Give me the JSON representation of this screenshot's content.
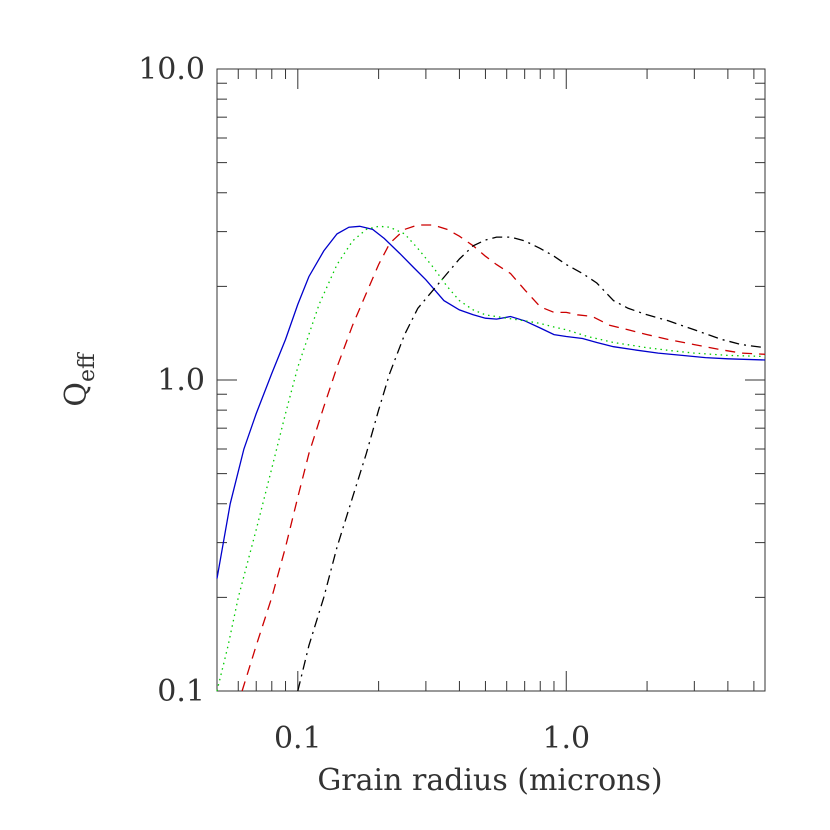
{
  "chart_data": {
    "type": "line",
    "title": "",
    "xlabel": "Grain radius (microns)",
    "ylabel_main": "Q",
    "ylabel_sub": "eff",
    "xscale": "log",
    "yscale": "log",
    "xlim": [
      0.05,
      5.5
    ],
    "ylim": [
      0.1,
      10.0
    ],
    "x_tick_labels": [
      {
        "value": 0.1,
        "label": "0.1"
      },
      {
        "value": 1.0,
        "label": "1.0"
      }
    ],
    "y_tick_labels": [
      {
        "value": 0.1,
        "label": "0.1"
      },
      {
        "value": 1.0,
        "label": "1.0"
      },
      {
        "value": 10.0,
        "label": "10.0"
      }
    ],
    "grid": false,
    "series": [
      {
        "color": "#0000cc",
        "linestyle": "solid",
        "x": [
          0.05,
          0.056,
          0.063,
          0.07,
          0.08,
          0.09,
          0.1,
          0.11,
          0.125,
          0.14,
          0.155,
          0.17,
          0.19,
          0.21,
          0.24,
          0.27,
          0.3,
          0.35,
          0.4,
          0.45,
          0.5,
          0.55,
          0.62,
          0.7,
          0.8,
          0.9,
          1.0,
          1.15,
          1.3,
          1.5,
          1.8,
          2.2,
          2.7,
          3.3,
          4.0,
          5.5
        ],
        "y": [
          0.23,
          0.4,
          0.6,
          0.78,
          1.05,
          1.35,
          1.75,
          2.15,
          2.6,
          2.95,
          3.1,
          3.12,
          3.05,
          2.85,
          2.55,
          2.3,
          2.1,
          1.8,
          1.68,
          1.62,
          1.58,
          1.57,
          1.6,
          1.55,
          1.47,
          1.4,
          1.38,
          1.36,
          1.32,
          1.28,
          1.25,
          1.22,
          1.2,
          1.18,
          1.17,
          1.16
        ]
      },
      {
        "color": "#00cc00",
        "linestyle": "dotted",
        "x": [
          0.05,
          0.055,
          0.06,
          0.07,
          0.08,
          0.09,
          0.1,
          0.12,
          0.14,
          0.16,
          0.18,
          0.2,
          0.22,
          0.25,
          0.28,
          0.32,
          0.36,
          0.4,
          0.45,
          0.5,
          0.6,
          0.7,
          0.8,
          0.9,
          1.0,
          1.2,
          1.5,
          2.0,
          2.5,
          3.0,
          4.0,
          5.5
        ],
        "y": [
          0.1,
          0.14,
          0.2,
          0.33,
          0.52,
          0.78,
          1.1,
          1.75,
          2.35,
          2.8,
          3.05,
          3.12,
          3.1,
          2.95,
          2.65,
          2.3,
          2.0,
          1.8,
          1.68,
          1.62,
          1.58,
          1.55,
          1.52,
          1.48,
          1.45,
          1.38,
          1.32,
          1.27,
          1.24,
          1.22,
          1.2,
          1.19
        ]
      },
      {
        "color": "#cc0000",
        "linestyle": "dashed",
        "x": [
          0.062,
          0.07,
          0.08,
          0.09,
          0.1,
          0.11,
          0.125,
          0.14,
          0.16,
          0.18,
          0.2,
          0.22,
          0.25,
          0.28,
          0.32,
          0.36,
          0.4,
          0.45,
          0.5,
          0.55,
          0.62,
          0.7,
          0.8,
          0.9,
          1.0,
          1.1,
          1.25,
          1.45,
          1.7,
          2.0,
          2.4,
          3.0,
          3.8,
          4.5,
          5.5
        ],
        "y": [
          0.1,
          0.14,
          0.2,
          0.29,
          0.42,
          0.58,
          0.82,
          1.1,
          1.5,
          1.9,
          2.35,
          2.75,
          3.05,
          3.15,
          3.15,
          3.05,
          2.9,
          2.7,
          2.5,
          2.35,
          2.2,
          1.95,
          1.72,
          1.65,
          1.65,
          1.62,
          1.6,
          1.5,
          1.45,
          1.4,
          1.35,
          1.3,
          1.25,
          1.22,
          1.21
        ]
      },
      {
        "color": "#000000",
        "linestyle": "dashdot",
        "x": [
          0.1,
          0.11,
          0.125,
          0.14,
          0.16,
          0.18,
          0.2,
          0.22,
          0.25,
          0.28,
          0.32,
          0.36,
          0.4,
          0.45,
          0.5,
          0.55,
          0.62,
          0.7,
          0.8,
          0.9,
          1.0,
          1.15,
          1.3,
          1.5,
          1.7,
          2.0,
          2.4,
          3.0,
          3.8,
          4.5,
          5.5
        ],
        "y": [
          0.1,
          0.14,
          0.2,
          0.29,
          0.42,
          0.58,
          0.8,
          1.05,
          1.4,
          1.7,
          1.95,
          2.2,
          2.45,
          2.7,
          2.82,
          2.88,
          2.88,
          2.8,
          2.65,
          2.5,
          2.35,
          2.2,
          2.05,
          1.8,
          1.7,
          1.62,
          1.55,
          1.45,
          1.35,
          1.3,
          1.27
        ]
      }
    ]
  }
}
